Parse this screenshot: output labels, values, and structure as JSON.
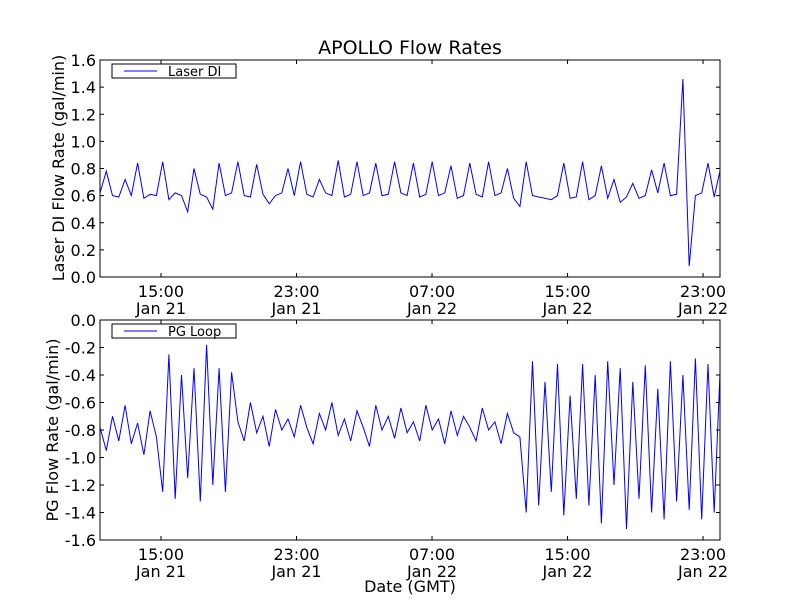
{
  "chart_data": [
    {
      "type": "line",
      "title": "APOLLO Flow Rates",
      "ylabel": "Laser DI Flow Rate (gal/min)",
      "xlabel": "",
      "x_units": "hours since Jan 21 00:00 GMT",
      "xlim": [
        11.4,
        48.0
      ],
      "ylim": [
        0.0,
        1.6
      ],
      "yticks": [
        0.0,
        0.2,
        0.4,
        0.6,
        0.8,
        1.0,
        1.2,
        1.4,
        1.6
      ],
      "ytick_labels": [
        "0.0",
        "0.2",
        "0.4",
        "0.6",
        "0.8",
        "1.0",
        "1.2",
        "1.4",
        "1.6"
      ],
      "xticks": [
        15,
        23,
        31,
        39,
        47
      ],
      "xtick_labels": [
        [
          "15:00",
          "Jan 21"
        ],
        [
          "23:00",
          "Jan 21"
        ],
        [
          "07:00",
          "Jan 22"
        ],
        [
          "15:00",
          "Jan 22"
        ],
        [
          "23:00",
          "Jan 22"
        ]
      ],
      "legend": {
        "placement": "top-left",
        "entries": [
          "Laser DI"
        ]
      },
      "series": [
        {
          "name": "Laser DI",
          "color": "#0000ff",
          "x_start": 11.4,
          "x_step": 0.37,
          "values": [
            0.62,
            0.78,
            0.6,
            0.59,
            0.72,
            0.6,
            0.84,
            0.58,
            0.61,
            0.6,
            0.85,
            0.57,
            0.62,
            0.6,
            0.48,
            0.8,
            0.61,
            0.59,
            0.5,
            0.84,
            0.6,
            0.62,
            0.85,
            0.6,
            0.59,
            0.83,
            0.61,
            0.54,
            0.6,
            0.62,
            0.8,
            0.6,
            0.85,
            0.61,
            0.59,
            0.72,
            0.62,
            0.6,
            0.86,
            0.59,
            0.61,
            0.85,
            0.6,
            0.62,
            0.84,
            0.6,
            0.61,
            0.85,
            0.62,
            0.6,
            0.84,
            0.59,
            0.61,
            0.85,
            0.6,
            0.62,
            0.82,
            0.58,
            0.6,
            0.84,
            0.61,
            0.59,
            0.85,
            0.6,
            0.62,
            0.8,
            0.58,
            0.52,
            0.85,
            0.6,
            0.59,
            0.58,
            0.57,
            0.6,
            0.84,
            0.58,
            0.59,
            0.85,
            0.57,
            0.6,
            0.82,
            0.58,
            0.72,
            0.55,
            0.59,
            0.69,
            0.58,
            0.6,
            0.79,
            0.62,
            0.84,
            0.6,
            0.61,
            1.46,
            0.08,
            0.6,
            0.62,
            0.84,
            0.59,
            0.8
          ]
        }
      ]
    },
    {
      "type": "line",
      "title": "",
      "ylabel": "PG Flow Rate (gal/min)",
      "xlabel": "Date (GMT)",
      "x_units": "hours since Jan 21 00:00 GMT",
      "xlim": [
        11.4,
        48.0
      ],
      "ylim": [
        -1.6,
        0.0
      ],
      "yticks": [
        -1.6,
        -1.4,
        -1.2,
        -1.0,
        -0.8,
        -0.6,
        -0.4,
        -0.2,
        0.0
      ],
      "ytick_labels": [
        "-1.6",
        "-1.4",
        "-1.2",
        "-1.0",
        "-0.8",
        "-0.6",
        "-0.4",
        "-0.2",
        "0.0"
      ],
      "xticks": [
        15,
        23,
        31,
        39,
        47
      ],
      "xtick_labels": [
        [
          "15:00",
          "Jan 21"
        ],
        [
          "23:00",
          "Jan 21"
        ],
        [
          "07:00",
          "Jan 22"
        ],
        [
          "15:00",
          "Jan 22"
        ],
        [
          "23:00",
          "Jan 22"
        ]
      ],
      "legend": {
        "placement": "top-left",
        "entries": [
          "PG Loop"
        ]
      },
      "series": [
        {
          "name": "PG Loop",
          "color": "#0000ff",
          "x_start": 11.4,
          "x_step": 0.37,
          "values": [
            -0.78,
            -0.95,
            -0.7,
            -0.88,
            -0.62,
            -0.9,
            -0.75,
            -0.98,
            -0.66,
            -0.85,
            -1.25,
            -0.25,
            -1.3,
            -0.4,
            -1.15,
            -0.35,
            -1.32,
            -0.18,
            -1.2,
            -0.35,
            -1.25,
            -0.38,
            -0.74,
            -0.88,
            -0.6,
            -0.82,
            -0.7,
            -0.92,
            -0.65,
            -0.8,
            -0.72,
            -0.85,
            -0.62,
            -0.78,
            -0.9,
            -0.68,
            -0.8,
            -0.6,
            -0.84,
            -0.72,
            -0.88,
            -0.66,
            -0.78,
            -0.92,
            -0.62,
            -0.8,
            -0.7,
            -0.86,
            -0.64,
            -0.82,
            -0.74,
            -0.88,
            -0.62,
            -0.8,
            -0.72,
            -0.9,
            -0.66,
            -0.84,
            -0.7,
            -0.78,
            -0.88,
            -0.64,
            -0.8,
            -0.74,
            -0.9,
            -0.68,
            -0.82,
            -0.85,
            -1.4,
            -0.3,
            -1.35,
            -0.45,
            -1.25,
            -0.32,
            -1.42,
            -0.55,
            -1.3,
            -0.32,
            -1.35,
            -0.4,
            -1.48,
            -0.3,
            -1.2,
            -0.35,
            -1.52,
            -0.45,
            -1.3,
            -0.33,
            -1.4,
            -0.5,
            -1.45,
            -0.3,
            -1.32,
            -0.4,
            -1.38,
            -0.28,
            -1.45,
            -0.32,
            -1.4,
            -0.3
          ]
        }
      ]
    }
  ]
}
